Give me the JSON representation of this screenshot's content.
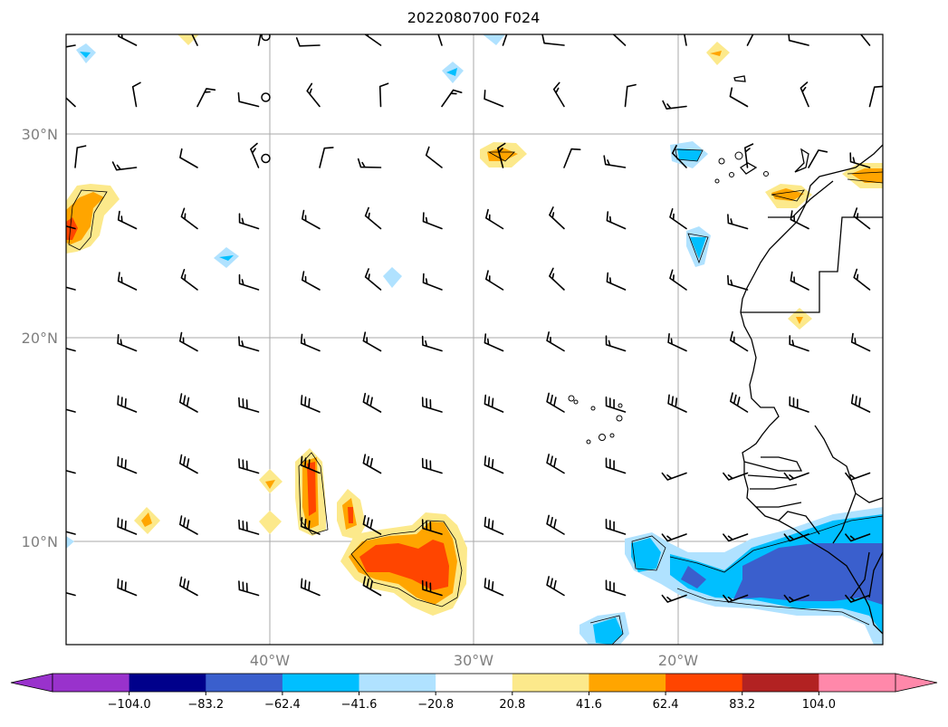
{
  "title": "2022080700 F024",
  "lat_labels": [
    "30°N",
    "20°N",
    "10°N"
  ],
  "lon_labels": [
    "40°W",
    "30°W",
    "20°W"
  ],
  "colorbar": {
    "tick_labels": [
      "−104.0",
      "−83.2",
      "−62.4",
      "−41.6",
      "−20.8",
      "20.8",
      "41.6",
      "62.4",
      "83.2",
      "104.0"
    ],
    "colors": [
      "#9932cc",
      "#00008b",
      "#3a5fcd",
      "#00bfff",
      "#b0e2ff",
      "#ffffff",
      "#fce98b",
      "#ffa500",
      "#ff4500",
      "#b22222",
      "#ff88aa"
    ]
  },
  "map": {
    "frame_color": "#000000",
    "grid_color": "#aaaaaa",
    "coastline_color": "#000000",
    "wind_barb_color": "#000000"
  }
}
